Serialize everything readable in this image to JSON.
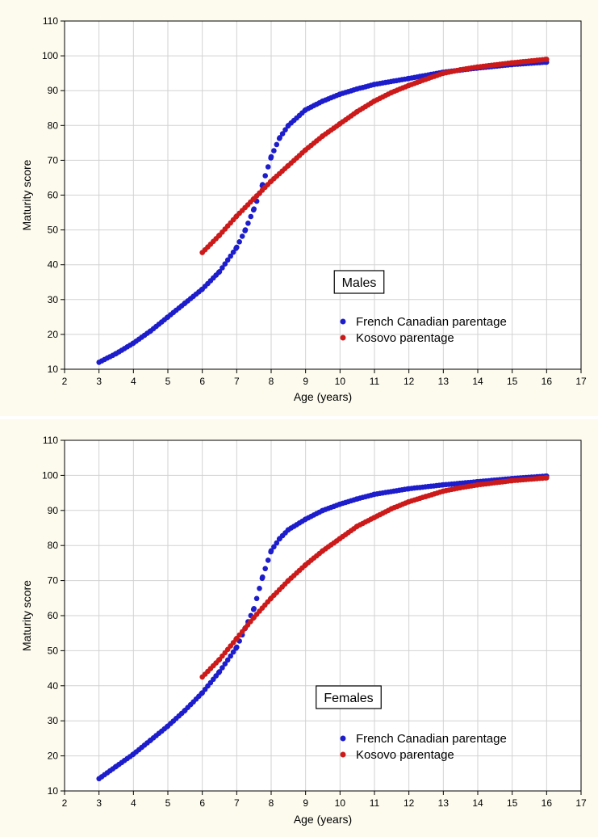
{
  "chart_data": [
    {
      "type": "scatter",
      "title": "",
      "xlabel": "Age (years)",
      "ylabel": "Maturity score",
      "xlim": [
        2,
        17
      ],
      "ylim": [
        10,
        110
      ],
      "xticks": [
        2,
        3,
        4,
        5,
        6,
        7,
        8,
        9,
        10,
        11,
        12,
        13,
        14,
        15,
        16,
        17
      ],
      "yticks": [
        10,
        20,
        30,
        40,
        50,
        60,
        70,
        80,
        90,
        100,
        110
      ],
      "grid": true,
      "annotation": "Males",
      "legend_position": "right-middle",
      "series": [
        {
          "name": "French Canadian parentage",
          "color": "#1d1dcc",
          "x": [
            3,
            3.5,
            4,
            4.5,
            5,
            5.5,
            6,
            6.5,
            7,
            7.25,
            7.5,
            7.75,
            8,
            8.25,
            8.5,
            9,
            9.5,
            10,
            10.5,
            11,
            12,
            13,
            14,
            15,
            16
          ],
          "y": [
            12,
            14.5,
            17.5,
            21,
            25,
            29,
            33,
            38,
            45,
            50,
            56,
            63,
            71,
            76.5,
            80,
            84.5,
            87,
            89,
            90.5,
            91.8,
            93.5,
            95.3,
            96.5,
            97.5,
            98.2
          ]
        },
        {
          "name": "Kosovo parentage",
          "color": "#cc1a1a",
          "x": [
            6,
            6.5,
            7,
            7.5,
            8,
            8.5,
            9,
            9.5,
            10,
            10.5,
            11,
            11.5,
            12,
            12.5,
            13,
            13.5,
            14,
            15,
            16
          ],
          "y": [
            43.5,
            48.5,
            54,
            59,
            64,
            68.5,
            73,
            77,
            80.5,
            84,
            87,
            89.5,
            91.5,
            93.3,
            95,
            96,
            96.8,
            98,
            99
          ]
        }
      ]
    },
    {
      "type": "scatter",
      "title": "",
      "xlabel": "Age (years)",
      "ylabel": "Maturity score",
      "xlim": [
        2,
        17
      ],
      "ylim": [
        10,
        110
      ],
      "xticks": [
        2,
        3,
        4,
        5,
        6,
        7,
        8,
        9,
        10,
        11,
        12,
        13,
        14,
        15,
        16,
        17
      ],
      "yticks": [
        10,
        20,
        30,
        40,
        50,
        60,
        70,
        80,
        90,
        100,
        110
      ],
      "grid": true,
      "annotation": "Females",
      "legend_position": "bottom-right",
      "series": [
        {
          "name": "French Canadian parentage",
          "color": "#1d1dcc",
          "x": [
            3,
            3.5,
            4,
            4.5,
            5,
            5.5,
            6,
            6.5,
            7,
            7.25,
            7.5,
            7.75,
            8,
            8.25,
            8.5,
            9,
            9.5,
            10,
            10.5,
            11,
            12,
            13,
            14,
            15,
            16
          ],
          "y": [
            13.5,
            17,
            20.5,
            24.5,
            28.5,
            33,
            38,
            44,
            51,
            56.5,
            62,
            71,
            78.5,
            82,
            84.5,
            87.5,
            90,
            91.8,
            93.3,
            94.6,
            96.2,
            97.3,
            98.2,
            99.1,
            99.8
          ]
        },
        {
          "name": "Kosovo parentage",
          "color": "#cc1a1a",
          "x": [
            6,
            6.5,
            7,
            7.5,
            8,
            8.5,
            9,
            9.5,
            10,
            10.5,
            11,
            11.5,
            12,
            12.5,
            13,
            13.5,
            14,
            15,
            16
          ],
          "y": [
            42.5,
            47.5,
            53.5,
            59.5,
            65,
            70,
            74.5,
            78.5,
            82,
            85.5,
            88,
            90.5,
            92.5,
            94,
            95.5,
            96.5,
            97.3,
            98.5,
            99.3
          ]
        }
      ]
    }
  ]
}
